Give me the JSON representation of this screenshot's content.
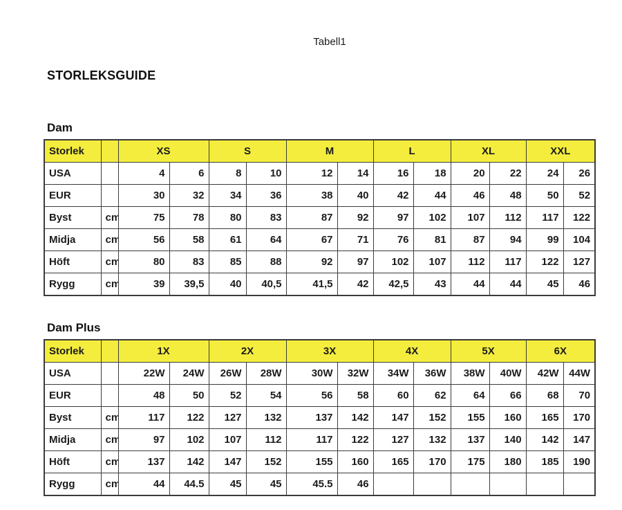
{
  "page": {
    "tabell_label": "Tabell1",
    "title": "STORLEKSGUIDE"
  },
  "colors": {
    "header_yellow": "#f4ed3d",
    "border": "#3b3b3b",
    "text": "#1b1b1b"
  },
  "tables": [
    {
      "section_title": "Dam",
      "header": {
        "label": "Storlek",
        "groups": [
          "XS",
          "S",
          "M",
          "L",
          "XL",
          "XXL"
        ]
      },
      "rows": [
        {
          "label": "USA",
          "unit": "",
          "values": [
            "4",
            "6",
            "8",
            "10",
            "12",
            "14",
            "16",
            "18",
            "20",
            "22",
            "24",
            "26"
          ]
        },
        {
          "label": "EUR",
          "unit": "",
          "values": [
            "30",
            "32",
            "34",
            "36",
            "38",
            "40",
            "42",
            "44",
            "46",
            "48",
            "50",
            "52"
          ]
        },
        {
          "label": "Byst",
          "unit": "cm",
          "values": [
            "75",
            "78",
            "80",
            "83",
            "87",
            "92",
            "97",
            "102",
            "107",
            "112",
            "117",
            "122"
          ]
        },
        {
          "label": "Midja",
          "unit": "cm",
          "values": [
            "56",
            "58",
            "61",
            "64",
            "67",
            "71",
            "76",
            "81",
            "87",
            "94",
            "99",
            "104"
          ]
        },
        {
          "label": "Höft",
          "unit": "cm",
          "values": [
            "80",
            "83",
            "85",
            "88",
            "92",
            "97",
            "102",
            "107",
            "112",
            "117",
            "122",
            "127"
          ]
        },
        {
          "label": "Rygg",
          "unit": "cm",
          "values": [
            "39",
            "39,5",
            "40",
            "40,5",
            "41,5",
            "42",
            "42,5",
            "43",
            "44",
            "44",
            "45",
            "46"
          ]
        }
      ]
    },
    {
      "section_title": "Dam Plus",
      "header": {
        "label": "Storlek",
        "groups": [
          "1X",
          "2X",
          "3X",
          "4X",
          "5X",
          "6X"
        ]
      },
      "rows": [
        {
          "label": "USA",
          "unit": "",
          "values": [
            "22W",
            "24W",
            "26W",
            "28W",
            "30W",
            "32W",
            "34W",
            "36W",
            "38W",
            "40W",
            "42W",
            "44W"
          ]
        },
        {
          "label": "EUR",
          "unit": "",
          "values": [
            "48",
            "50",
            "52",
            "54",
            "56",
            "58",
            "60",
            "62",
            "64",
            "66",
            "68",
            "70"
          ]
        },
        {
          "label": "Byst",
          "unit": "cm",
          "values": [
            "117",
            "122",
            "127",
            "132",
            "137",
            "142",
            "147",
            "152",
            "155",
            "160",
            "165",
            "170"
          ]
        },
        {
          "label": "Midja",
          "unit": "cm",
          "values": [
            "97",
            "102",
            "107",
            "112",
            "117",
            "122",
            "127",
            "132",
            "137",
            "140",
            "142",
            "147"
          ]
        },
        {
          "label": "Höft",
          "unit": "cm",
          "values": [
            "137",
            "142",
            "147",
            "152",
            "155",
            "160",
            "165",
            "170",
            "175",
            "180",
            "185",
            "190"
          ]
        },
        {
          "label": "Rygg",
          "unit": "cm",
          "values": [
            "44",
            "44.5",
            "45",
            "45",
            "45.5",
            "46",
            "",
            "",
            "",
            "",
            "",
            ""
          ]
        }
      ]
    }
  ]
}
